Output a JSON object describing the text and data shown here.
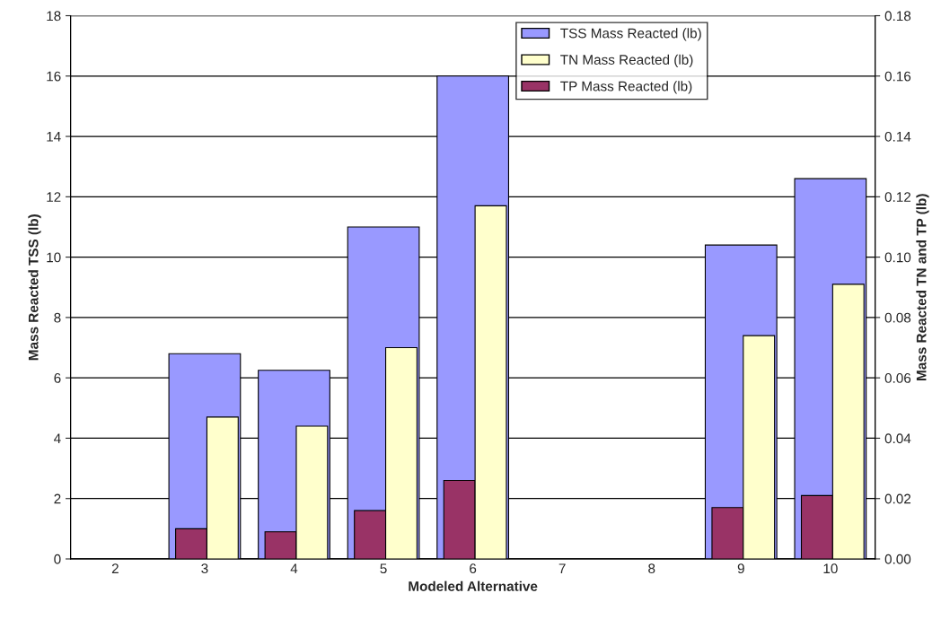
{
  "chart_data": {
    "type": "bar",
    "xlabel": "Modeled Alternative",
    "ylabel": "Mass Reacted TSS (lb)",
    "y2label": "Mass Reacted TN and TP (lb)",
    "categories": [
      "2",
      "3",
      "4",
      "5",
      "6",
      "7",
      "8",
      "9",
      "10"
    ],
    "series": [
      {
        "name": "TSS Mass Reacted (lb)",
        "color": "#9999ff",
        "values": [
          null,
          6.8,
          6.25,
          11.0,
          16.0,
          null,
          null,
          10.4,
          12.6
        ]
      },
      {
        "name": "TN Mass Reacted (lb)",
        "color": "#ffffcc",
        "axis": "y2",
        "values": [
          null,
          0.047,
          0.044,
          0.07,
          0.117,
          null,
          null,
          0.074,
          0.091
        ]
      },
      {
        "name": "TP Mass Reacted (lb)",
        "color": "#993366",
        "axis": "y2",
        "values": [
          null,
          0.01,
          0.009,
          0.016,
          0.026,
          null,
          null,
          0.017,
          0.021
        ]
      }
    ],
    "ylim": [
      0,
      18
    ],
    "yticks": [
      0,
      2,
      4,
      6,
      8,
      10,
      12,
      14,
      16,
      18
    ],
    "y2lim": [
      0,
      0.18
    ],
    "y2ticks": [
      {
        "value": 0,
        "label": "0.00"
      },
      {
        "value": 0.02,
        "label": "0.02"
      },
      {
        "value": 0.04,
        "label": "0.04"
      },
      {
        "value": 0.06,
        "label": "0.06"
      },
      {
        "value": 0.08,
        "label": "0.08"
      },
      {
        "value": 0.1,
        "label": "0.10"
      },
      {
        "value": 0.12,
        "label": "0.12"
      },
      {
        "value": 0.14,
        "label": "0.14"
      },
      {
        "value": 0.16,
        "label": "0.16"
      },
      {
        "value": 0.18,
        "label": "0.18"
      }
    ],
    "grid": "y",
    "legend": "top right"
  }
}
